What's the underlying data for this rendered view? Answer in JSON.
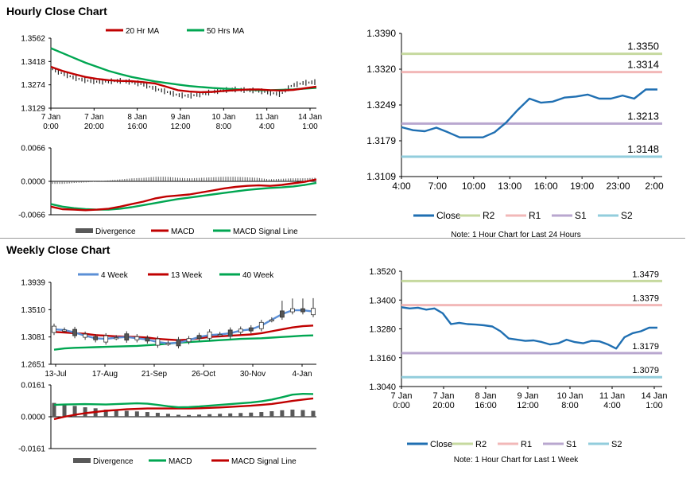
{
  "sections": {
    "hourly_title": "Hourly Close Chart",
    "weekly_title": "Weekly Close Chart"
  },
  "colors": {
    "ma_short": "#c00000",
    "ma_long": "#00a651",
    "close": "#1f6fb2",
    "r2": "#c6d99f",
    "r1": "#f2b8b8",
    "s1": "#b9a7cf",
    "s2": "#92cddc",
    "divergence": "#595959",
    "week4": "#5b8fd6"
  },
  "chart_data": [
    {
      "id": "hourly-price",
      "type": "line",
      "legend": [
        "20 Hr MA",
        "50 Hrs MA"
      ],
      "yticks": [
        "1.3562",
        "1.3418",
        "1.3274",
        "1.3129"
      ],
      "ylim": [
        1.3129,
        1.3562
      ],
      "xticks": [
        [
          "7 Jan",
          "0:00"
        ],
        [
          "7 Jan",
          "20:00"
        ],
        [
          "8 Jan",
          "16:00"
        ],
        [
          "9 Jan",
          "12:00"
        ],
        [
          "10 Jan",
          "8:00"
        ],
        [
          "11 Jan",
          "4:00"
        ],
        [
          "14 Jan",
          "1:00"
        ]
      ],
      "series": [
        {
          "name": "50 Hrs MA",
          "values": [
            1.35,
            1.347,
            1.344,
            1.341,
            1.3385,
            1.336,
            1.334,
            1.3322,
            1.3308,
            1.3295,
            1.3285,
            1.3275,
            1.3266,
            1.326,
            1.3254,
            1.325,
            1.3246,
            1.3243,
            1.324,
            1.324,
            1.3242,
            1.3245,
            1.325,
            1.3255
          ]
        },
        {
          "name": "20 Hr MA",
          "values": [
            1.3385,
            1.336,
            1.334,
            1.3322,
            1.331,
            1.3302,
            1.3298,
            1.3296,
            1.329,
            1.3282,
            1.3262,
            1.324,
            1.3232,
            1.3228,
            1.323,
            1.3236,
            1.324,
            1.3244,
            1.3245,
            1.324,
            1.3238,
            1.3242,
            1.3252,
            1.3262
          ]
        },
        {
          "name": "Close",
          "values": [
            1.337,
            1.334,
            1.3315,
            1.33,
            1.3292,
            1.3295,
            1.3298,
            1.329,
            1.3275,
            1.325,
            1.323,
            1.321,
            1.3205,
            1.3215,
            1.323,
            1.324,
            1.3245,
            1.324,
            1.3238,
            1.3225,
            1.3215,
            1.327,
            1.3285,
            1.329
          ]
        }
      ]
    },
    {
      "id": "hourly-macd",
      "type": "line",
      "legend": [
        "Divergence",
        "MACD",
        "MACD Signal Line"
      ],
      "yticks": [
        "0.0066",
        "0.0000",
        "-0.0066"
      ],
      "ylim": [
        -0.0066,
        0.0066
      ],
      "series": [
        {
          "name": "MACD",
          "values": [
            -0.005,
            -0.0055,
            -0.0056,
            -0.0057,
            -0.0056,
            -0.0054,
            -0.005,
            -0.0045,
            -0.004,
            -0.0034,
            -0.003,
            -0.0028,
            -0.0026,
            -0.0022,
            -0.0018,
            -0.0014,
            -0.0011,
            -0.0009,
            -0.0008,
            -0.0009,
            -0.0007,
            -0.0004,
            -0.0001,
            0.0004
          ]
        },
        {
          "name": "MACD Signal Line",
          "values": [
            -0.0045,
            -0.005,
            -0.0053,
            -0.0055,
            -0.0056,
            -0.0056,
            -0.0054,
            -0.0051,
            -0.0047,
            -0.0043,
            -0.0039,
            -0.0035,
            -0.0032,
            -0.0029,
            -0.0026,
            -0.0023,
            -0.002,
            -0.0017,
            -0.0015,
            -0.0013,
            -0.0012,
            -0.001,
            -0.0007,
            -0.0003
          ]
        },
        {
          "name": "Divergence",
          "values": [
            -0.0005,
            -0.0005,
            -0.0003,
            -0.0002,
            0.0,
            0.0002,
            0.0004,
            0.0006,
            0.0007,
            0.0009,
            0.0009,
            0.0007,
            0.0006,
            0.0007,
            0.0008,
            0.0009,
            0.0009,
            0.0008,
            0.0007,
            0.0004,
            0.0005,
            0.0006,
            0.0006,
            0.0007
          ]
        }
      ]
    },
    {
      "id": "hourly-24h",
      "type": "line",
      "yticks": [
        "1.3390",
        "1.3320",
        "1.3249",
        "1.3179",
        "1.3109"
      ],
      "ylim": [
        1.3109,
        1.339
      ],
      "xticks": [
        "4:00",
        "7:00",
        "10:00",
        "13:00",
        "16:00",
        "19:00",
        "23:00",
        "2:00"
      ],
      "levels": [
        {
          "name": "R2",
          "value": 1.335,
          "label": "1.3350"
        },
        {
          "name": "R1",
          "value": 1.3314,
          "label": "1.3314"
        },
        {
          "name": "S1",
          "value": 1.3213,
          "label": "1.3213"
        },
        {
          "name": "S2",
          "value": 1.3148,
          "label": "1.3148"
        }
      ],
      "series": [
        {
          "name": "Close",
          "values": [
            1.3206,
            1.32,
            1.3198,
            1.3205,
            1.3196,
            1.3186,
            1.3186,
            1.3186,
            1.3196,
            1.3215,
            1.324,
            1.3262,
            1.3254,
            1.3256,
            1.3264,
            1.3266,
            1.327,
            1.3262,
            1.3262,
            1.3268,
            1.3262,
            1.328,
            1.328
          ]
        }
      ],
      "legend": [
        "Close",
        "R2",
        "R1",
        "S1",
        "S2"
      ],
      "note": "Note: 1 Hour Chart for Last 24 Hours"
    },
    {
      "id": "weekly-price",
      "type": "line",
      "legend": [
        "4 Week",
        "13 Week",
        "40 Week"
      ],
      "yticks": [
        "1.3939",
        "1.3510",
        "1.3081",
        "1.2651"
      ],
      "ylim": [
        1.2651,
        1.3939
      ],
      "xticks": [
        "13-Jul",
        "17-Aug",
        "21-Sep",
        "26-Oct",
        "30-Nov",
        "4-Jan"
      ],
      "series": [
        {
          "name": "40 Week",
          "values": [
            1.288,
            1.29,
            1.291,
            1.2915,
            1.292,
            1.2925,
            1.293,
            1.2935,
            1.294,
            1.295,
            1.296,
            1.2975,
            1.299,
            1.3,
            1.301,
            1.302,
            1.303,
            1.304,
            1.305,
            1.3055,
            1.306,
            1.307,
            1.308,
            1.309,
            1.31,
            1.3105
          ]
        },
        {
          "name": "13 Week",
          "values": [
            1.316,
            1.315,
            1.314,
            1.313,
            1.311,
            1.31,
            1.309,
            1.3085,
            1.308,
            1.307,
            1.305,
            1.304,
            1.303,
            1.304,
            1.306,
            1.308,
            1.309,
            1.31,
            1.311,
            1.312,
            1.314,
            1.317,
            1.32,
            1.323,
            1.325,
            1.326
          ]
        },
        {
          "name": "4 Week",
          "values": [
            1.32,
            1.319,
            1.315,
            1.31,
            1.306,
            1.305,
            1.307,
            1.308,
            1.306,
            1.304,
            1.3,
            1.298,
            1.299,
            1.303,
            1.308,
            1.311,
            1.312,
            1.314,
            1.318,
            1.32,
            1.326,
            1.335,
            1.344,
            1.35,
            1.35,
            1.348
          ]
        }
      ]
    },
    {
      "id": "weekly-macd",
      "type": "line",
      "legend": [
        "Divergence",
        "MACD",
        "MACD Signal Line"
      ],
      "yticks": [
        "0.0161",
        "0.0000",
        "-0.0161"
      ],
      "ylim": [
        -0.0161,
        0.0161
      ],
      "series": [
        {
          "name": "MACD",
          "values": [
            0.006,
            0.0062,
            0.0063,
            0.0064,
            0.0063,
            0.0062,
            0.0064,
            0.0066,
            0.0068,
            0.0066,
            0.006,
            0.0053,
            0.0048,
            0.0049,
            0.0052,
            0.0056,
            0.006,
            0.0064,
            0.0068,
            0.0072,
            0.0078,
            0.0087,
            0.0099,
            0.0112,
            0.0116,
            0.0115
          ]
        },
        {
          "name": "MACD Signal Line",
          "values": [
            -0.0012,
            0.0,
            0.001,
            0.0018,
            0.0024,
            0.003,
            0.0034,
            0.0038,
            0.004,
            0.0042,
            0.0042,
            0.0042,
            0.0042,
            0.0042,
            0.0043,
            0.0045,
            0.0047,
            0.005,
            0.0053,
            0.0056,
            0.006,
            0.0065,
            0.0072,
            0.008,
            0.0087,
            0.0093
          ]
        },
        {
          "name": "Divergence",
          "values": [
            0.007,
            0.006,
            0.0055,
            0.0048,
            0.0043,
            0.0036,
            0.0033,
            0.003,
            0.0027,
            0.0024,
            0.002,
            0.0015,
            0.001,
            0.0009,
            0.0011,
            0.0013,
            0.0015,
            0.0017,
            0.0019,
            0.0021,
            0.0024,
            0.0028,
            0.0033,
            0.0036,
            0.0034,
            0.003
          ]
        }
      ]
    },
    {
      "id": "weekly-1w",
      "type": "line",
      "yticks": [
        "1.3520",
        "1.3400",
        "1.3280",
        "1.3160",
        "1.3040"
      ],
      "ylim": [
        1.304,
        1.352
      ],
      "xticks": [
        [
          "7 Jan",
          "0:00"
        ],
        [
          "7 Jan",
          "20:00"
        ],
        [
          "8 Jan",
          "16:00"
        ],
        [
          "9 Jan",
          "12:00"
        ],
        [
          "10 Jan",
          "8:00"
        ],
        [
          "11 Jan",
          "4:00"
        ],
        [
          "14 Jan",
          "1:00"
        ]
      ],
      "levels": [
        {
          "name": "R2",
          "value": 1.3479,
          "label": "1.3479"
        },
        {
          "name": "R1",
          "value": 1.3379,
          "label": "1.3379"
        },
        {
          "name": "S1",
          "value": 1.3179,
          "label": "1.3179"
        },
        {
          "name": "S2",
          "value": 1.3079,
          "label": "1.3079"
        }
      ],
      "series": [
        {
          "name": "Close",
          "values": [
            1.337,
            1.3365,
            1.3368,
            1.336,
            1.3365,
            1.3345,
            1.33,
            1.3305,
            1.33,
            1.3298,
            1.3295,
            1.329,
            1.327,
            1.324,
            1.3235,
            1.323,
            1.3232,
            1.3225,
            1.3215,
            1.322,
            1.3235,
            1.3225,
            1.322,
            1.323,
            1.3228,
            1.3215,
            1.3198,
            1.3245,
            1.3262,
            1.327,
            1.3285,
            1.3285
          ]
        }
      ],
      "legend": [
        "Close",
        "R2",
        "R1",
        "S1",
        "S2"
      ],
      "note": "Note: 1 Hour Chart for Last 1 Week"
    }
  ]
}
